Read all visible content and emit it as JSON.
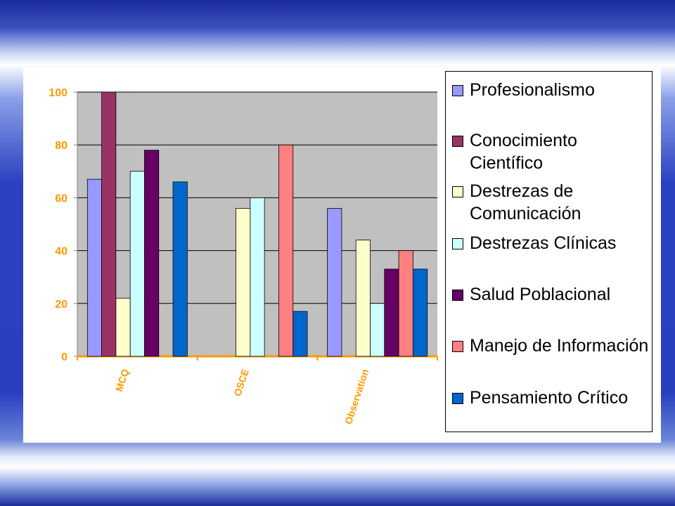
{
  "chart_data": {
    "type": "bar",
    "categories": [
      "MCQ",
      "OSCE",
      "Observation"
    ],
    "series": [
      {
        "name": "Profesionalismo",
        "color": "#9999ff",
        "values": [
          67,
          null,
          56
        ]
      },
      {
        "name": "Conocimiento Científico",
        "color": "#993366",
        "values": [
          100,
          null,
          null
        ]
      },
      {
        "name": "Destrezas de Comunicación",
        "color": "#ffffcc",
        "values": [
          22,
          56,
          44
        ]
      },
      {
        "name": "Destrezas Clínicas",
        "color": "#ccffff",
        "values": [
          70,
          60,
          20
        ]
      },
      {
        "name": "Salud Poblacional",
        "color": "#660066",
        "values": [
          78,
          null,
          33
        ]
      },
      {
        "name": "Manejo de Información",
        "color": "#ff8080",
        "values": [
          null,
          80,
          40
        ]
      },
      {
        "name": "Pensamiento Crítico",
        "color": "#0066cc",
        "values": [
          66,
          17,
          33
        ]
      }
    ],
    "ylim": [
      0,
      100
    ],
    "yticks": [
      0,
      20,
      40,
      60,
      80,
      100
    ],
    "grid": true,
    "legend": "right"
  }
}
